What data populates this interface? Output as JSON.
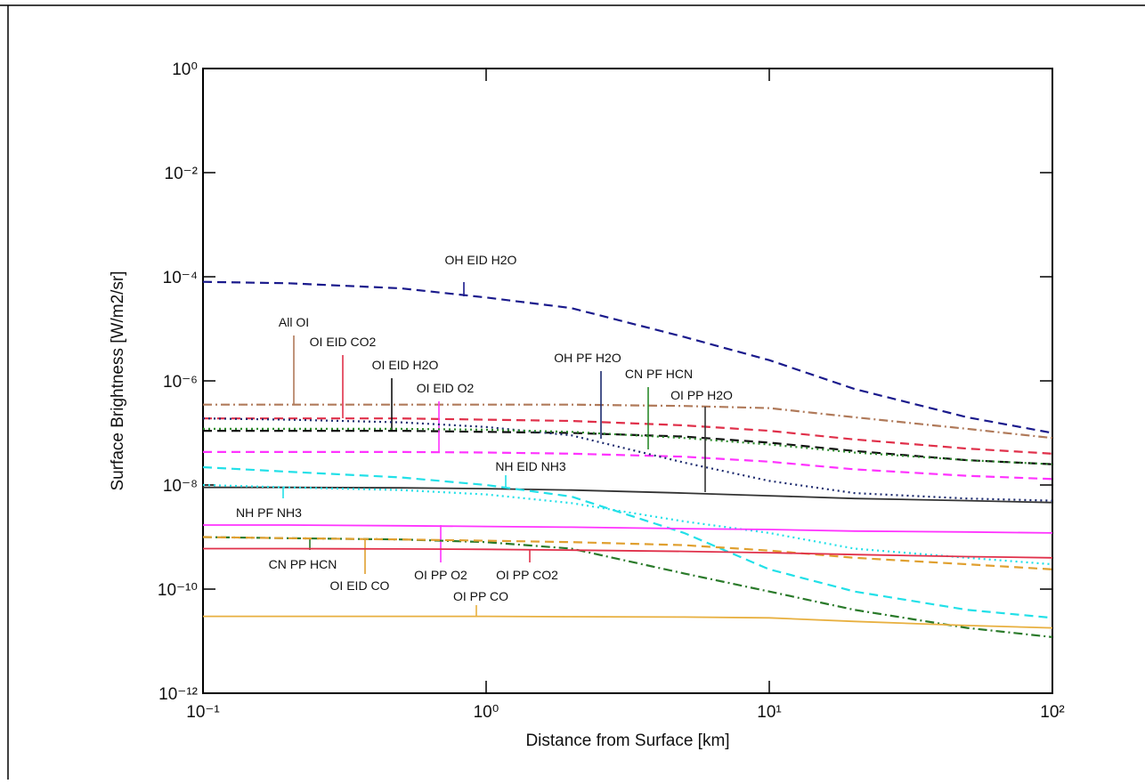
{
  "chart_data": {
    "type": "line",
    "x_label": "Distance from Surface [km]",
    "y_label": "Surface Brightness [W/m2/sr]",
    "xscale": "log",
    "yscale": "log",
    "grid": false,
    "xlim": [
      0.1,
      100
    ],
    "xticks": [
      {
        "value": 0.1,
        "label": "10⁻¹"
      },
      {
        "value": 1,
        "label": "10⁰"
      },
      {
        "value": 10,
        "label": "10¹"
      },
      {
        "value": 100,
        "label": "10²"
      }
    ],
    "ylim": [
      1e-12,
      1
    ],
    "yticks": [
      {
        "value": 1,
        "label": "10⁰"
      },
      {
        "value": 0.01,
        "label": "10⁻²"
      },
      {
        "value": 0.0001,
        "label": "10⁻⁴"
      },
      {
        "value": 1e-06,
        "label": "10⁻⁶"
      },
      {
        "value": 1e-08,
        "label": "10⁻⁸"
      },
      {
        "value": 1e-10,
        "label": "10⁻¹⁰"
      },
      {
        "value": 1e-12,
        "label": "10⁻¹²"
      }
    ],
    "x": [
      0.1,
      0.2,
      0.5,
      1,
      2,
      5,
      10,
      20,
      50,
      100
    ],
    "series": [
      {
        "name": "OH EID H2O",
        "color": "#1a1a8c",
        "dash": "dashed",
        "values": [
          8e-05,
          7.5e-05,
          6e-05,
          4e-05,
          2.5e-05,
          7e-06,
          2.5e-06,
          7e-07,
          2e-07,
          1e-07
        ]
      },
      {
        "name": "All OI",
        "color": "#b07a5a",
        "dash": "dashdot",
        "values": [
          3.5e-07,
          3.5e-07,
          3.5e-07,
          3.5e-07,
          3.5e-07,
          3.3e-07,
          3e-07,
          2e-07,
          1.2e-07,
          8e-08
        ]
      },
      {
        "name": "OI EID CO2",
        "color": "#e0304a",
        "dash": "dashed",
        "values": [
          1.9e-07,
          1.9e-07,
          1.9e-07,
          1.8e-07,
          1.7e-07,
          1.4e-07,
          1.1e-07,
          7.5e-08,
          5e-08,
          4e-08
        ]
      },
      {
        "name": "OI EID H2O",
        "color": "#111111",
        "dash": "dashed",
        "values": [
          1.1e-07,
          1.1e-07,
          1.1e-07,
          1.05e-07,
          1e-07,
          8.5e-08,
          6.5e-08,
          4.5e-08,
          3e-08,
          2.5e-08
        ]
      },
      {
        "name": "OI EID O2",
        "color": "#ff33ff",
        "dash": "dashed",
        "values": [
          4.3e-08,
          4.3e-08,
          4.3e-08,
          4.2e-08,
          4e-08,
          3.5e-08,
          2.8e-08,
          2e-08,
          1.5e-08,
          1.3e-08
        ]
      },
      {
        "name": "OH PF H2O",
        "color": "#1c2a6e",
        "dash": "dotted",
        "values": [
          1.9e-07,
          1.8e-07,
          1.6e-07,
          1.3e-07,
          9e-08,
          2.7e-08,
          1.2e-08,
          7e-09,
          5.5e-09,
          5e-09
        ]
      },
      {
        "name": "CN PF HCN",
        "color": "#2a8a2a",
        "dash": "dotted",
        "values": [
          1.2e-07,
          1.2e-07,
          1.2e-07,
          1.15e-07,
          1.05e-07,
          8e-08,
          6e-08,
          4.2e-08,
          3e-08,
          2.5e-08
        ]
      },
      {
        "name": "OI PP H2O",
        "color": "#333333",
        "dash": "solid",
        "values": [
          9e-09,
          9e-09,
          8.8e-09,
          8.5e-09,
          8e-09,
          7e-09,
          6.2e-09,
          5.5e-09,
          5e-09,
          4.6e-09
        ]
      },
      {
        "name": "NH EID NH3",
        "color": "#22e0e8",
        "dash": "dashed",
        "values": [
          2.2e-08,
          1.8e-08,
          1.4e-08,
          1e-08,
          6e-09,
          1.2e-09,
          2.4e-10,
          9e-11,
          4e-11,
          2.8e-11
        ]
      },
      {
        "name": "NH PF NH3",
        "color": "#22e0e8",
        "dash": "dotted",
        "values": [
          1e-08,
          9e-09,
          8e-09,
          6.6e-09,
          4.5e-09,
          2e-09,
          1.2e-09,
          6e-10,
          4e-10,
          3e-10
        ]
      },
      {
        "name": "OI PP O2",
        "color": "#ff33ff",
        "dash": "solid",
        "values": [
          1.7e-09,
          1.7e-09,
          1.65e-09,
          1.6e-09,
          1.55e-09,
          1.45e-09,
          1.4e-09,
          1.3e-09,
          1.25e-09,
          1.2e-09
        ]
      },
      {
        "name": "CN PP HCN",
        "color": "#2a7a2a",
        "dash": "dashdot",
        "values": [
          1e-09,
          9.5e-10,
          9e-10,
          8e-10,
          6e-10,
          2e-10,
          9e-11,
          4e-11,
          1.8e-11,
          1.2e-11
        ]
      },
      {
        "name": "OI EID CO",
        "color": "#e0a030",
        "dash": "dashed",
        "values": [
          1e-09,
          9.5e-10,
          9e-10,
          8.5e-10,
          8e-10,
          7e-10,
          5.5e-10,
          4e-10,
          3e-10,
          2.4e-10
        ]
      },
      {
        "name": "OI PP CO2",
        "color": "#e0304a",
        "dash": "solid",
        "values": [
          6e-10,
          6e-10,
          5.9e-10,
          5.8e-10,
          5.6e-10,
          5.3e-10,
          5e-10,
          4.6e-10,
          4.2e-10,
          4e-10
        ]
      },
      {
        "name": "OI PP CO",
        "color": "#e8b040",
        "dash": "solid",
        "values": [
          3e-11,
          3e-11,
          3e-11,
          3e-11,
          2.95e-11,
          2.9e-11,
          2.8e-11,
          2.4e-11,
          2e-11,
          1.8e-11
        ]
      }
    ]
  }
}
